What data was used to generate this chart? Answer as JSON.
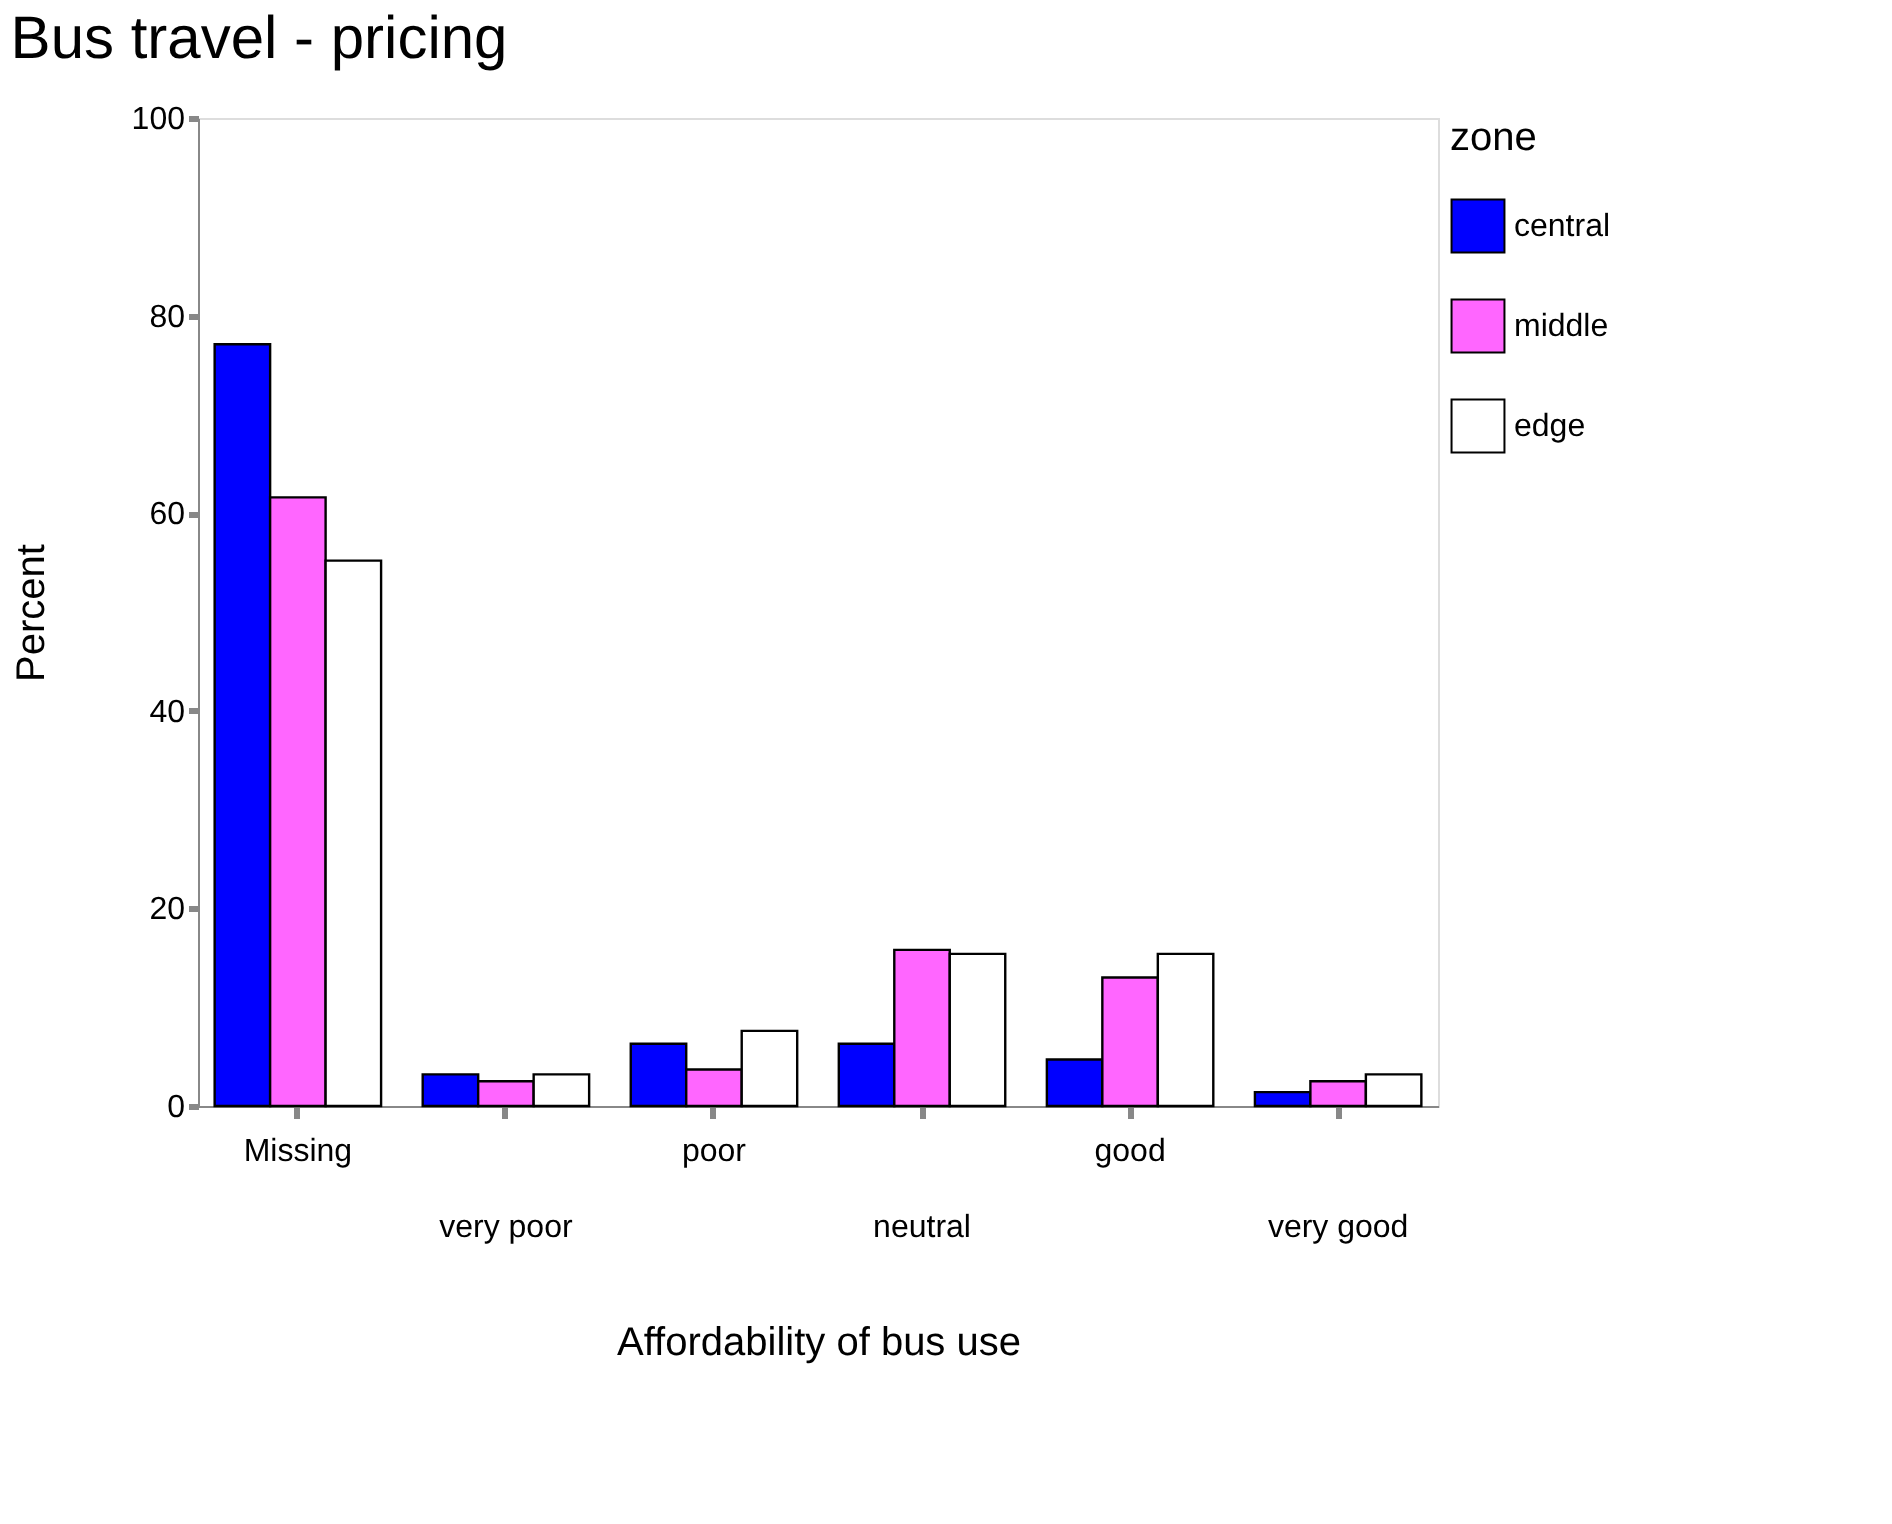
{
  "chart_data": {
    "type": "bar",
    "title": "Bus travel - pricing",
    "xlabel": "Affordability of bus use",
    "ylabel": "Percent",
    "legend_title": "zone",
    "categories": [
      "Missing",
      "very poor",
      "poor",
      "neutral",
      "good",
      "very good"
    ],
    "series": [
      {
        "name": "central",
        "color": "#0000ff",
        "values": [
          77.1,
          3.2,
          6.3,
          6.3,
          4.7,
          1.4
        ]
      },
      {
        "name": "middle",
        "color": "#ff66ff",
        "values": [
          61.6,
          2.5,
          3.7,
          15.8,
          13.0,
          2.5
        ]
      },
      {
        "name": "edge",
        "color": "#ffffff",
        "values": [
          55.2,
          3.2,
          7.6,
          15.4,
          15.4,
          3.2
        ]
      }
    ],
    "ylim": [
      0,
      100
    ],
    "yticks": [
      0,
      20,
      40,
      60,
      80,
      100
    ],
    "grid": false,
    "legend": "right"
  }
}
